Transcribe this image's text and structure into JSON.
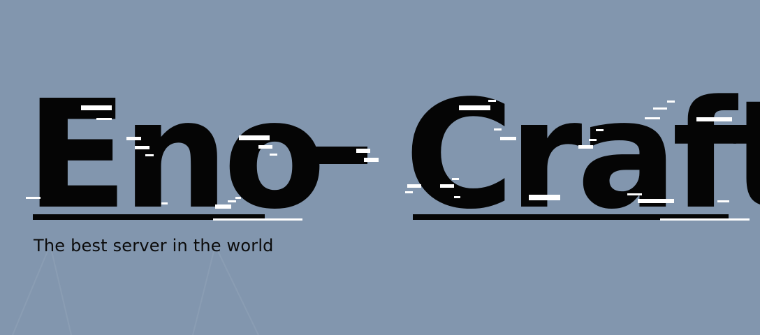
{
  "title": {
    "left_word": "Eno",
    "separator": "-",
    "right_word": "Craft"
  },
  "tagline": "The best server in the world",
  "colors": {
    "background": "#8296ae",
    "text": "#050505",
    "glitch": "#ffffff"
  }
}
